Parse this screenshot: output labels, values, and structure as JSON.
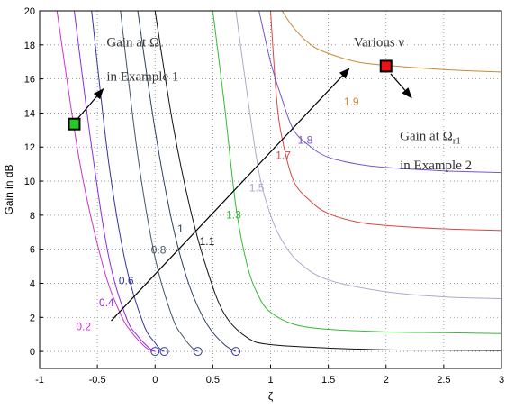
{
  "chart_data": {
    "type": "line",
    "title": "",
    "xlabel": "ζ",
    "ylabel": "Gain in dB",
    "xlim": [
      -1,
      3
    ],
    "ylim": [
      -1,
      20
    ],
    "xticks": [
      -1,
      -0.5,
      0,
      0.5,
      1,
      1.5,
      2,
      2.5,
      3
    ],
    "yticks": [
      0,
      2,
      4,
      6,
      8,
      10,
      12,
      14,
      16,
      18,
      20
    ],
    "xtick_labels": [
      "-1",
      "-0.5",
      "0",
      "0.5",
      "1",
      "1.5",
      "2",
      "2.5",
      "3"
    ],
    "ytick_labels": [
      "0",
      "2",
      "4",
      "6",
      "8",
      "10",
      "12",
      "14",
      "16",
      "18",
      "20"
    ],
    "grid": true,
    "series": [
      {
        "name": "0.2",
        "color": "#cc33cc",
        "x": [
          -0.85,
          -0.65,
          -0.45,
          -0.3,
          -0.2,
          -0.1,
          -0.05,
          0.0
        ],
        "y": [
          20.0,
          11.0,
          5.0,
          2.2,
          1.1,
          0.35,
          0.1,
          0.0
        ]
      },
      {
        "name": "0.4",
        "color": "#8a2be2",
        "x": [
          -0.7,
          -0.55,
          -0.4,
          -0.25,
          -0.15,
          -0.05,
          0.0
        ],
        "y": [
          20.0,
          12.0,
          5.5,
          2.0,
          0.9,
          0.2,
          0.0
        ]
      },
      {
        "name": "0.6",
        "color": "#33339a",
        "x": [
          -0.55,
          -0.4,
          -0.25,
          -0.1,
          0.0,
          0.05,
          0.08
        ],
        "y": [
          20.0,
          11.0,
          5.0,
          1.6,
          0.5,
          0.1,
          0.0
        ]
      },
      {
        "name": "0.8",
        "color": "#445566",
        "x": [
          -0.3,
          -0.15,
          0.0,
          0.15,
          0.25,
          0.33,
          0.37
        ],
        "y": [
          20.0,
          11.5,
          5.5,
          2.0,
          0.8,
          0.15,
          0.0
        ]
      },
      {
        "name": "1",
        "color": "#2a4060",
        "x": [
          -0.15,
          0.0,
          0.15,
          0.3,
          0.45,
          0.6,
          0.7
        ],
        "y": [
          20.0,
          13.0,
          7.5,
          3.8,
          1.6,
          0.4,
          0.0
        ]
      },
      {
        "name": "1.1",
        "color": "#111111",
        "x": [
          0.0,
          0.15,
          0.3,
          0.45,
          0.6,
          0.8,
          1.0,
          1.5,
          2.0,
          2.5,
          3.0
        ],
        "y": [
          20.0,
          13.5,
          8.5,
          4.8,
          2.2,
          0.8,
          0.4,
          0.2,
          0.1,
          0.07,
          0.05
        ]
      },
      {
        "name": "1.3",
        "color": "#33bb33",
        "x": [
          0.5,
          0.6,
          0.7,
          0.8,
          0.9,
          1.0,
          1.2,
          1.5,
          2.0,
          2.5,
          3.0
        ],
        "y": [
          20.0,
          14.5,
          8.5,
          5.0,
          3.2,
          2.3,
          1.6,
          1.3,
          1.15,
          1.1,
          1.05
        ]
      },
      {
        "name": "1.5",
        "color": "#aaaacc",
        "x": [
          0.7,
          0.8,
          0.9,
          1.0,
          1.1,
          1.25,
          1.5,
          2.0,
          2.5,
          3.0
        ],
        "y": [
          20.0,
          15.0,
          10.5,
          8.0,
          6.5,
          5.2,
          4.2,
          3.5,
          3.2,
          3.1
        ]
      },
      {
        "name": "1.7",
        "color": "#dd4444",
        "x": [
          1.0,
          1.05,
          1.1,
          1.2,
          1.35,
          1.5,
          1.75,
          2.0,
          2.5,
          3.0
        ],
        "y": [
          20.0,
          15.0,
          12.5,
          10.0,
          8.8,
          8.1,
          7.6,
          7.4,
          7.2,
          7.1
        ]
      },
      {
        "name": "1.8",
        "color": "#7755cc",
        "x": [
          0.9,
          1.0,
          1.1,
          1.2,
          1.35,
          1.5,
          1.75,
          2.0,
          2.5,
          3.0
        ],
        "y": [
          20.0,
          17.0,
          14.8,
          13.0,
          12.0,
          11.4,
          11.0,
          10.8,
          10.6,
          10.5
        ]
      },
      {
        "name": "1.9",
        "color": "#cc8833",
        "x": [
          1.1,
          1.2,
          1.35,
          1.5,
          1.75,
          2.0,
          2.5,
          3.0
        ],
        "y": [
          20.0,
          19.0,
          18.0,
          17.5,
          17.0,
          16.8,
          16.55,
          16.4
        ]
      }
    ],
    "curve_labels": [
      {
        "text": "0.2",
        "x": -0.62,
        "y": 2.5,
        "color": "#cc33cc"
      },
      {
        "text": "0.4",
        "x": -0.42,
        "y": 5.3,
        "color": "#8a2be2"
      },
      {
        "text": "0.6",
        "x": -0.25,
        "y": 7.9,
        "color": "#33339a"
      },
      {
        "text": "0.8",
        "x": 0.03,
        "y": 11.5,
        "color": "#445566"
      },
      {
        "text": "1",
        "x": 0.22,
        "y": 14.0,
        "color": "#2a4060"
      },
      {
        "text": "1.1",
        "x": 0.45,
        "y": 12.5,
        "color": "#111111"
      },
      {
        "text": "1.3",
        "x": 0.68,
        "y": 15.6,
        "color": "#33bb33"
      },
      {
        "text": "1.5",
        "x": 0.88,
        "y": 18.8,
        "color": "#aaaacc"
      },
      {
        "text": "1.7",
        "x": 1.11,
        "y": 22.6,
        "color": "#dd4444"
      },
      {
        "text": "1.8",
        "x": 1.3,
        "y": 24.4,
        "color": "#7755cc"
      },
      {
        "text": "1.9",
        "x": 1.7,
        "y": 28.9,
        "color": "#cc8833"
      }
    ],
    "markers": {
      "circles": [
        {
          "x": 0.0,
          "y": 0.0
        },
        {
          "x": 0.08,
          "y": 0.0
        },
        {
          "x": 0.37,
          "y": 0.0
        },
        {
          "x": 0.7,
          "y": 0.0
        }
      ],
      "squares": [
        {
          "x": -0.7,
          "y": 13.35,
          "color": "#22cc22"
        },
        {
          "x": 2.0,
          "y": 16.75,
          "color": "#ee1111"
        }
      ]
    },
    "annotations": [
      {
        "text_main": "Gain at Ω",
        "text_sub": "r",
        "text_line2": "in Example 1"
      },
      {
        "text_main": "Various ν",
        "text_sub": "",
        "text_line2": ""
      },
      {
        "text_main": "Gain at Ω",
        "text_sub": "r1",
        "text_line2": "in Example 2"
      }
    ]
  }
}
